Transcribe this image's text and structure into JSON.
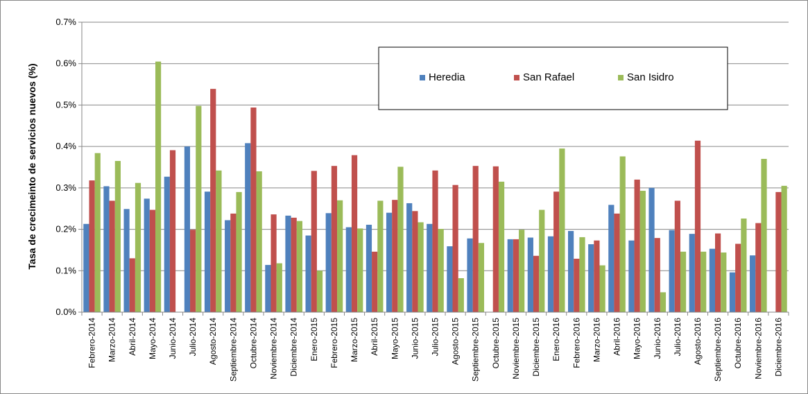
{
  "chart_data": {
    "type": "bar",
    "title": "",
    "xlabel": "",
    "ylabel": "Tasa de crecimeinto de servicios nuevos (%)",
    "ylim": [
      0,
      0.7
    ],
    "yticks": [
      "0.0%",
      "0.1%",
      "0.2%",
      "0.3%",
      "0.4%",
      "0.5%",
      "0.6%",
      "0.7%"
    ],
    "grid": true,
    "legend_position": "top-center",
    "categories": [
      "Febrero-2014",
      "Marzo-2014",
      "Abril-2014",
      "Mayo-2014",
      "Junio-2014",
      "Julio-2014",
      "Agosto-2014",
      "Septiembre-2014",
      "Octubre-2014",
      "Noviembre-2014",
      "Diciembre-2014",
      "Enero-2015",
      "Febrero-2015",
      "Marzo-2015",
      "Abril-2015",
      "Mayo-2015",
      "Junio-2015",
      "Julio-2015",
      "Agosto-2015",
      "Septiembre-2015",
      "Octubre-2015",
      "Noviembre-2015",
      "Diciembre-2015",
      "Enero-2016",
      "Febrero-2016",
      "Marzo-2016",
      "Abril-2016",
      "Mayo-2016",
      "Junio-2016",
      "Julio-2016",
      "Agosto-2016",
      "Septiembre-2016",
      "Octubre-2016",
      "Noviembre-2016",
      "Diciembre-2016"
    ],
    "series": [
      {
        "name": "Heredia",
        "color": "#4F81BD",
        "values": [
          0.213,
          0.304,
          0.249,
          0.274,
          0.327,
          0.4,
          0.291,
          0.222,
          0.408,
          0.114,
          0.233,
          0.185,
          0.239,
          0.205,
          0.211,
          0.24,
          0.263,
          0.213,
          0.159,
          0.178,
          0.0,
          0.176,
          0.18,
          0.183,
          0.196,
          0.164,
          0.259,
          0.173,
          0.3,
          0.198,
          0.189,
          0.153,
          0.096,
          0.137,
          0.0
        ]
      },
      {
        "name": "San Rafael",
        "color": "#C0504D",
        "values": [
          0.318,
          0.269,
          0.13,
          0.247,
          0.391,
          0.199,
          0.539,
          0.238,
          0.494,
          0.236,
          0.228,
          0.341,
          0.353,
          0.379,
          0.146,
          0.271,
          0.244,
          0.342,
          0.307,
          0.353,
          0.352,
          0.176,
          0.136,
          0.291,
          0.129,
          0.173,
          0.238,
          0.32,
          0.179,
          0.269,
          0.414,
          0.19,
          0.165,
          0.215,
          0.29
        ]
      },
      {
        "name": "San Isidro",
        "color": "#9BBB59",
        "values": [
          0.384,
          0.365,
          0.312,
          0.605,
          0.0,
          0.498,
          0.342,
          0.29,
          0.34,
          0.118,
          0.22,
          0.1,
          0.27,
          0.202,
          0.269,
          0.351,
          0.217,
          0.201,
          0.082,
          0.167,
          0.315,
          0.199,
          0.247,
          0.395,
          0.181,
          0.113,
          0.376,
          0.293,
          0.048,
          0.146,
          0.146,
          0.144,
          0.226,
          0.37,
          0.305
        ]
      }
    ]
  },
  "colors": {
    "grid": "#868686",
    "axis": "#868686",
    "border": "#868686",
    "background": "#FFFFFF"
  }
}
